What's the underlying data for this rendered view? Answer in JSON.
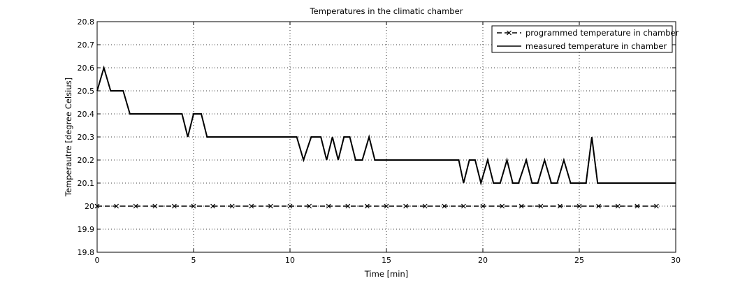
{
  "chart_data": {
    "type": "line",
    "title": "Temperatures in the climatic chamber",
    "xlabel": "Time [min]",
    "ylabel": "Temperautre [degree Celsius]",
    "xlim": [
      0,
      30
    ],
    "ylim": [
      19.8,
      20.8
    ],
    "xticks": [
      0,
      5,
      10,
      15,
      20,
      25,
      30
    ],
    "xtick_labels": [
      "0",
      "5",
      "10",
      "15",
      "20",
      "25",
      "30"
    ],
    "yticks": [
      19.8,
      19.9,
      20.0,
      20.1,
      20.2,
      20.3,
      20.4,
      20.5,
      20.6,
      20.7,
      20.8
    ],
    "ytick_labels": [
      "19.8",
      "19.9",
      "20",
      "20.1",
      "20.2",
      "20.3",
      "20.4",
      "20.5",
      "20.6",
      "20.7",
      "20.8"
    ],
    "grid": true,
    "legend_position": "top-right",
    "colors": {
      "line": "#000000",
      "grid": "#000000",
      "background": "#ffffff"
    },
    "series": [
      {
        "name": "programmed temperature in chamber",
        "style": "dashed-with-x-markers",
        "x": [
          0,
          1,
          2,
          3,
          4,
          5,
          6,
          7,
          8,
          9,
          10,
          11,
          12,
          13,
          14,
          15,
          16,
          17,
          18,
          19,
          20,
          21,
          22,
          23,
          24,
          25,
          26,
          27,
          28,
          29
        ],
        "y": [
          20.0,
          20.0,
          20.0,
          20.0,
          20.0,
          20.0,
          20.0,
          20.0,
          20.0,
          20.0,
          20.0,
          20.0,
          20.0,
          20.0,
          20.0,
          20.0,
          20.0,
          20.0,
          20.0,
          20.0,
          20.0,
          20.0,
          20.0,
          20.0,
          20.0,
          20.0,
          20.0,
          20.0,
          20.0,
          20.0
        ]
      },
      {
        "name": "measured temperature in chamber",
        "style": "solid",
        "x": [
          0,
          0.35,
          0.7,
          1.35,
          1.7,
          4.4,
          4.7,
          5.0,
          5.4,
          5.7,
          10.35,
          10.7,
          11.1,
          11.6,
          11.9,
          12.2,
          12.5,
          12.8,
          13.1,
          13.4,
          13.75,
          14.1,
          14.4,
          14.7,
          18.75,
          19.0,
          19.3,
          19.6,
          19.9,
          20.25,
          20.55,
          20.9,
          21.25,
          21.55,
          21.85,
          22.25,
          22.55,
          22.85,
          23.2,
          23.55,
          23.85,
          24.2,
          24.55,
          24.9,
          25.35,
          25.65,
          25.95,
          30.0
        ],
        "y": [
          20.5,
          20.6,
          20.5,
          20.5,
          20.4,
          20.4,
          20.3,
          20.4,
          20.4,
          20.3,
          20.3,
          20.2,
          20.3,
          20.3,
          20.2,
          20.3,
          20.2,
          20.3,
          20.3,
          20.2,
          20.2,
          20.3,
          20.2,
          20.2,
          20.2,
          20.1,
          20.2,
          20.2,
          20.1,
          20.2,
          20.1,
          20.1,
          20.2,
          20.1,
          20.1,
          20.2,
          20.1,
          20.1,
          20.2,
          20.1,
          20.1,
          20.2,
          20.1,
          20.1,
          20.1,
          20.3,
          20.1,
          20.1
        ]
      }
    ]
  }
}
